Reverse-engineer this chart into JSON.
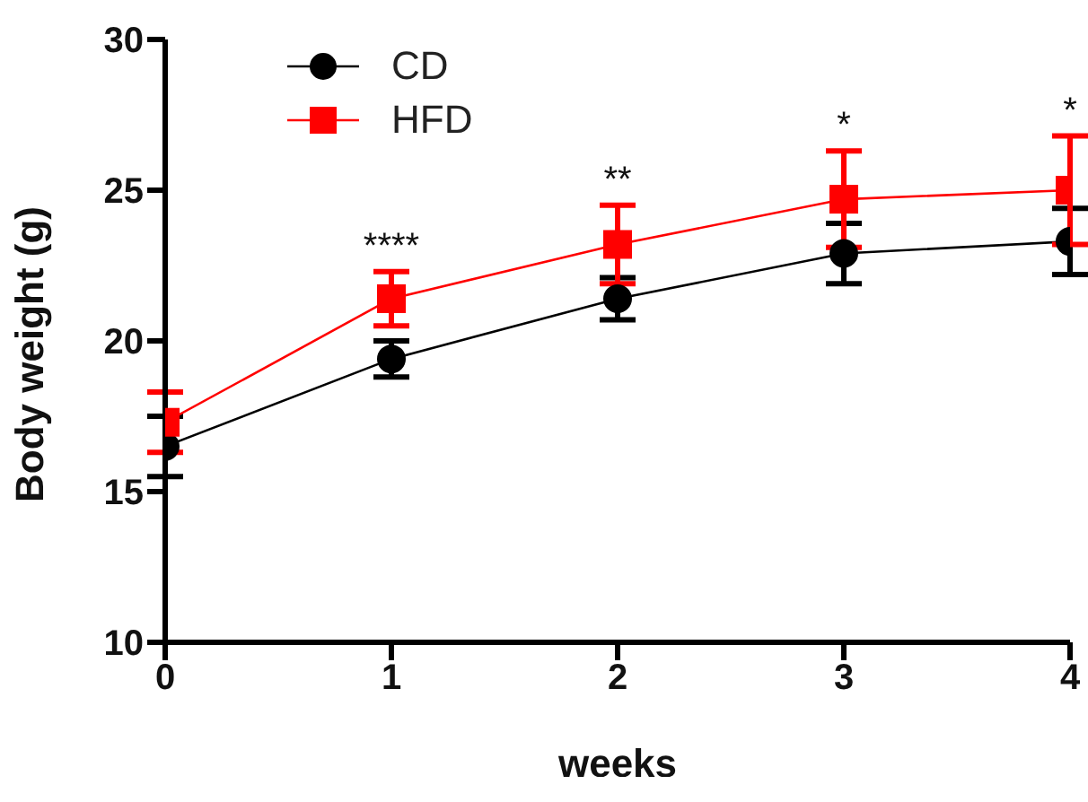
{
  "chart_data": {
    "type": "line",
    "xlabel": "weeks",
    "ylabel": "Body weight (g)",
    "x": [
      0,
      1,
      2,
      3,
      4
    ],
    "xlim": [
      0,
      4
    ],
    "xticks": [
      0,
      1,
      2,
      3,
      4
    ],
    "ylim": [
      10,
      30
    ],
    "yticks": [
      10,
      15,
      20,
      25,
      30
    ],
    "grid": false,
    "legend": "top left",
    "line_style": "solid",
    "series": [
      {
        "name": "CD",
        "color": "#000000",
        "marker": "circle",
        "values": [
          16.5,
          19.4,
          21.4,
          22.9,
          23.3
        ],
        "errors": [
          1.0,
          0.6,
          0.7,
          1.0,
          1.1
        ]
      },
      {
        "name": "HFD",
        "color": "#ff0000",
        "marker": "square",
        "values": [
          17.3,
          21.4,
          23.2,
          24.7,
          25.0
        ],
        "errors": [
          1.0,
          0.9,
          1.3,
          1.6,
          1.8
        ]
      }
    ],
    "annotations": [
      "****",
      "**",
      "*",
      "*"
    ]
  }
}
